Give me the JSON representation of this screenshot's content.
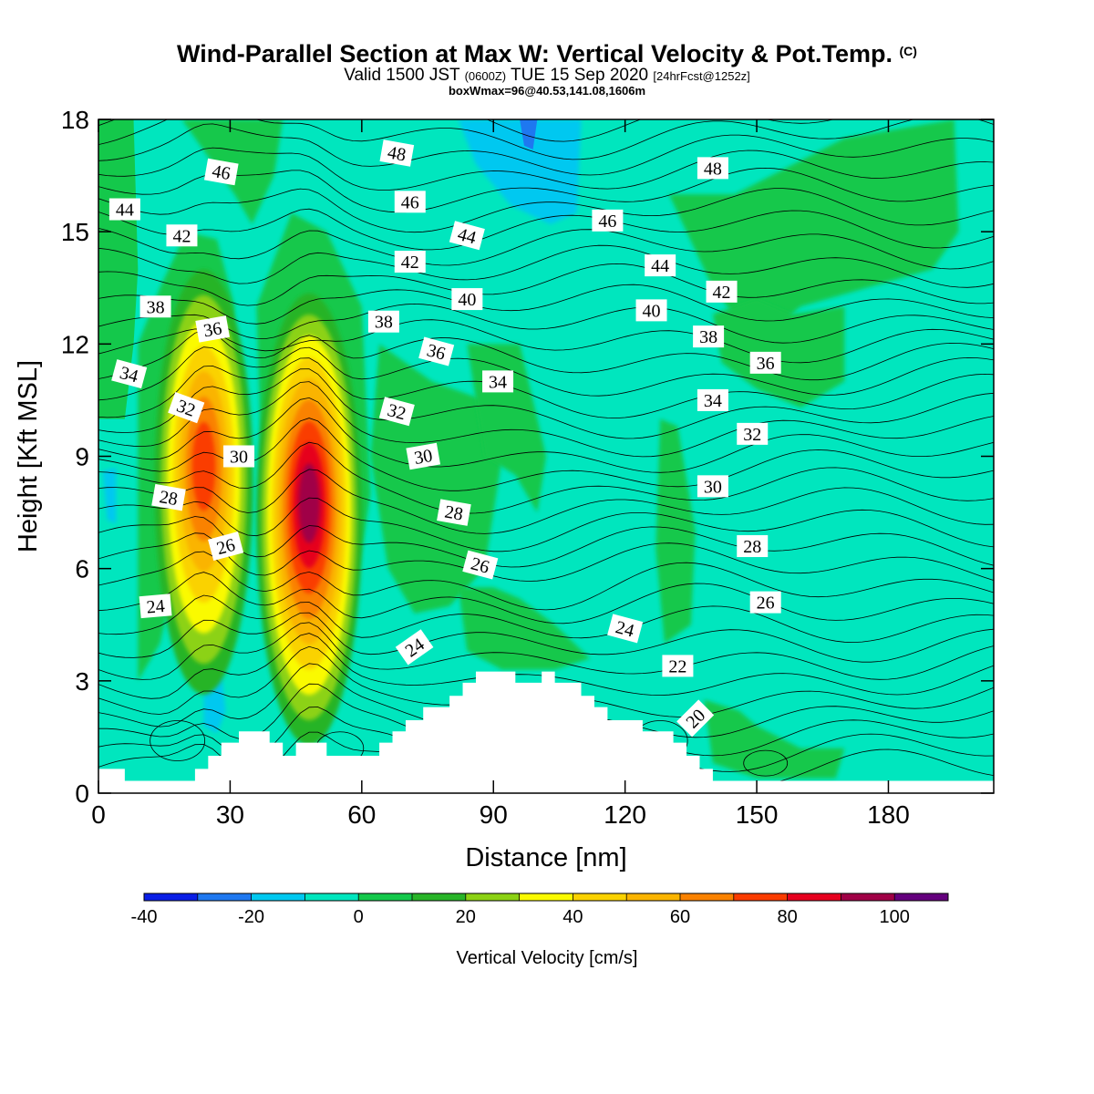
{
  "header": {
    "title": "Wind-Parallel Section at Max W: Vertical Velocity & Pot.Temp.",
    "title_mark": "(C)",
    "valid_prefix": "Valid 1500 JST",
    "valid_utc": "(0600Z)",
    "valid_date": "TUE 15 Sep 2020",
    "forecast": "[24hrFcst@1252z]",
    "box_info": "boxWmax=96@40.53,141.08,1606m"
  },
  "chart_data": {
    "type": "heatmap",
    "xlabel": "Distance [nm]",
    "ylabel": "Height [Kft MSL]",
    "xlim": [
      0,
      204
    ],
    "ylim": [
      0,
      18
    ],
    "x_ticks": [
      0,
      30,
      60,
      90,
      120,
      150,
      180
    ],
    "y_ticks": [
      0,
      3,
      6,
      9,
      12,
      15,
      18
    ],
    "colorbar": {
      "label": "Vertical Velocity [cm/s]",
      "bounds": [
        -40,
        -30,
        -20,
        -10,
        0,
        10,
        20,
        30,
        40,
        50,
        60,
        70,
        80,
        90,
        100,
        110
      ],
      "tick_labels": [
        "-40",
        "-20",
        "0",
        "20",
        "40",
        "60",
        "80",
        "100"
      ],
      "colors": [
        "#0a1ee6",
        "#1e78f0",
        "#00c8f0",
        "#00e6be",
        "#14c84b",
        "#28b428",
        "#8cd214",
        "#fafa00",
        "#fad200",
        "#fab400",
        "#fa8200",
        "#fa3c00",
        "#e6001e",
        "#a00046",
        "#64007d"
      ]
    },
    "terrain": {
      "x": [
        0,
        6,
        6,
        12,
        12,
        22,
        22,
        25,
        25,
        28,
        28,
        32,
        32,
        39,
        39,
        42,
        42,
        45,
        45,
        52,
        52,
        55,
        55,
        64,
        64,
        67,
        67,
        70,
        70,
        74,
        74,
        80,
        80,
        83,
        83,
        86,
        86,
        89,
        89,
        92,
        92,
        95,
        95,
        101,
        101,
        104,
        104,
        110,
        110,
        113,
        113,
        116,
        116,
        119,
        119,
        124,
        124,
        131,
        131,
        134,
        134,
        137,
        137,
        140,
        140,
        143,
        143,
        146,
        146,
        150,
        150,
        204
      ],
      "top_kft": [
        0.65,
        0.65,
        0.33,
        0.33,
        0.33,
        0.33,
        0.65,
        0.65,
        1.0,
        1.0,
        1.35,
        1.35,
        1.65,
        1.65,
        1.35,
        1.35,
        1.0,
        1.0,
        1.35,
        1.35,
        1.0,
        1.0,
        1.0,
        1.0,
        1.35,
        1.35,
        1.65,
        1.65,
        1.95,
        1.95,
        2.3,
        2.3,
        2.6,
        2.6,
        2.95,
        2.95,
        3.25,
        3.25,
        3.25,
        3.25,
        3.25,
        3.25,
        2.95,
        2.95,
        3.25,
        3.25,
        2.95,
        2.95,
        2.6,
        2.6,
        2.3,
        2.3,
        1.95,
        1.95,
        1.95,
        1.95,
        1.65,
        1.65,
        1.35,
        1.35,
        1.0,
        1.0,
        0.65,
        0.65,
        0.33,
        0.33,
        0.33,
        0.33,
        0.33,
        0.33,
        0.33,
        0.33
      ]
    },
    "updraft_cores": [
      {
        "name": "updraft-core-west",
        "x_nm": 24,
        "height_kft": 8.8,
        "max_cm_s": 80
      },
      {
        "name": "updraft-core-east",
        "x_nm": 48,
        "height_kft": 7.8,
        "max_cm_s": 100
      }
    ],
    "theta_contours": {
      "levels": [
        20,
        22,
        24,
        26,
        28,
        30,
        32,
        34,
        36,
        38,
        40,
        42,
        44,
        46,
        48
      ],
      "labels": [
        {
          "text": "48",
          "x": 68,
          "y": 17.1,
          "rot": 10
        },
        {
          "text": "46",
          "x": 28,
          "y": 16.6,
          "rot": 10
        },
        {
          "text": "46",
          "x": 71,
          "y": 15.8,
          "rot": 0
        },
        {
          "text": "46",
          "x": 116,
          "y": 15.3,
          "rot": 0
        },
        {
          "text": "48",
          "x": 140,
          "y": 16.7,
          "rot": 0
        },
        {
          "text": "44",
          "x": 6,
          "y": 15.6,
          "rot": 0
        },
        {
          "text": "42",
          "x": 19,
          "y": 14.9,
          "rot": 0
        },
        {
          "text": "44",
          "x": 84,
          "y": 14.9,
          "rot": 15
        },
        {
          "text": "44",
          "x": 128,
          "y": 14.1,
          "rot": 0
        },
        {
          "text": "42",
          "x": 71,
          "y": 14.2,
          "rot": 0
        },
        {
          "text": "42",
          "x": 142,
          "y": 13.4,
          "rot": 0
        },
        {
          "text": "40",
          "x": 84,
          "y": 13.2,
          "rot": 0
        },
        {
          "text": "40",
          "x": 126,
          "y": 12.9,
          "rot": 0
        },
        {
          "text": "38",
          "x": 13,
          "y": 13.0,
          "rot": 0
        },
        {
          "text": "38",
          "x": 65,
          "y": 12.6,
          "rot": 0
        },
        {
          "text": "38",
          "x": 139,
          "y": 12.2,
          "rot": 0
        },
        {
          "text": "36",
          "x": 26,
          "y": 12.4,
          "rot": -10
        },
        {
          "text": "36",
          "x": 77,
          "y": 11.8,
          "rot": 15
        },
        {
          "text": "36",
          "x": 152,
          "y": 11.5,
          "rot": 0
        },
        {
          "text": "34",
          "x": 7,
          "y": 11.2,
          "rot": 15
        },
        {
          "text": "34",
          "x": 91,
          "y": 11.0,
          "rot": 0
        },
        {
          "text": "34",
          "x": 140,
          "y": 10.5,
          "rot": 0
        },
        {
          "text": "32",
          "x": 20,
          "y": 10.3,
          "rot": 20
        },
        {
          "text": "32",
          "x": 68,
          "y": 10.2,
          "rot": 15
        },
        {
          "text": "32",
          "x": 149,
          "y": 9.6,
          "rot": 0
        },
        {
          "text": "30",
          "x": 32,
          "y": 9.0,
          "rot": 0
        },
        {
          "text": "30",
          "x": 74,
          "y": 9.0,
          "rot": -10
        },
        {
          "text": "30",
          "x": 140,
          "y": 8.2,
          "rot": 0
        },
        {
          "text": "28",
          "x": 16,
          "y": 7.9,
          "rot": 10
        },
        {
          "text": "28",
          "x": 81,
          "y": 7.5,
          "rot": 10
        },
        {
          "text": "28",
          "x": 149,
          "y": 6.6,
          "rot": 0
        },
        {
          "text": "26",
          "x": 29,
          "y": 6.6,
          "rot": -15
        },
        {
          "text": "26",
          "x": 87,
          "y": 6.1,
          "rot": 15
        },
        {
          "text": "26",
          "x": 152,
          "y": 5.1,
          "rot": 0
        },
        {
          "text": "24",
          "x": 13,
          "y": 5.0,
          "rot": -5
        },
        {
          "text": "24",
          "x": 72,
          "y": 3.9,
          "rot": -35
        },
        {
          "text": "24",
          "x": 120,
          "y": 4.4,
          "rot": 15
        },
        {
          "text": "22",
          "x": 132,
          "y": 3.4,
          "rot": 0
        },
        {
          "text": "20",
          "x": 136,
          "y": 2.0,
          "rot": -45
        }
      ]
    }
  }
}
